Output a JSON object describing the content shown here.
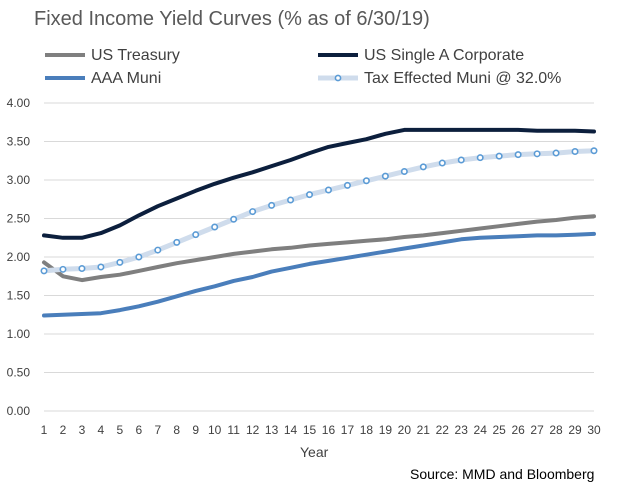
{
  "chart_data": {
    "type": "line",
    "title": "Fixed Income Yield Curves (% as of 6/30/19)",
    "xlabel": "Year",
    "ylabel": "",
    "x": [
      1,
      2,
      3,
      4,
      5,
      6,
      7,
      8,
      9,
      10,
      11,
      12,
      13,
      14,
      15,
      16,
      17,
      18,
      19,
      20,
      21,
      22,
      23,
      24,
      25,
      26,
      27,
      28,
      29,
      30
    ],
    "ylim": [
      0,
      4
    ],
    "yticks": [
      "0.00",
      "0.50",
      "1.00",
      "1.50",
      "2.00",
      "2.50",
      "3.00",
      "3.50",
      "4.00"
    ],
    "grid": true,
    "legend_position": "top",
    "series": [
      {
        "name": "US Treasury",
        "color": "#7f7f7f",
        "values": [
          1.93,
          1.75,
          1.7,
          1.74,
          1.77,
          1.82,
          1.87,
          1.92,
          1.96,
          2.0,
          2.04,
          2.07,
          2.1,
          2.12,
          2.15,
          2.17,
          2.19,
          2.21,
          2.23,
          2.26,
          2.28,
          2.31,
          2.34,
          2.37,
          2.4,
          2.43,
          2.46,
          2.48,
          2.51,
          2.53
        ]
      },
      {
        "name": "US Single A Corporate",
        "color": "#0c1f3d",
        "values": [
          2.28,
          2.25,
          2.25,
          2.31,
          2.41,
          2.54,
          2.66,
          2.76,
          2.86,
          2.95,
          3.03,
          3.1,
          3.18,
          3.26,
          3.35,
          3.43,
          3.48,
          3.53,
          3.6,
          3.65,
          3.65,
          3.65,
          3.65,
          3.65,
          3.65,
          3.65,
          3.64,
          3.64,
          3.64,
          3.63
        ]
      },
      {
        "name": "AAA Muni",
        "color": "#4a7ebb",
        "values": [
          1.24,
          1.25,
          1.26,
          1.27,
          1.31,
          1.36,
          1.42,
          1.49,
          1.56,
          1.62,
          1.69,
          1.74,
          1.81,
          1.86,
          1.91,
          1.95,
          1.99,
          2.03,
          2.07,
          2.11,
          2.15,
          2.19,
          2.23,
          2.25,
          2.26,
          2.27,
          2.28,
          2.28,
          2.29,
          2.3
        ]
      },
      {
        "name": "Tax Effected Muni @ 32.0%",
        "color": "#cfdcec",
        "marker_color": "#5b9bd5",
        "values": [
          1.82,
          1.84,
          1.85,
          1.87,
          1.93,
          2.0,
          2.09,
          2.19,
          2.29,
          2.39,
          2.49,
          2.59,
          2.67,
          2.74,
          2.81,
          2.87,
          2.93,
          2.99,
          3.05,
          3.11,
          3.17,
          3.22,
          3.26,
          3.29,
          3.31,
          3.33,
          3.34,
          3.35,
          3.37,
          3.38
        ]
      }
    ]
  },
  "source_note": "Source: MMD and Bloomberg"
}
